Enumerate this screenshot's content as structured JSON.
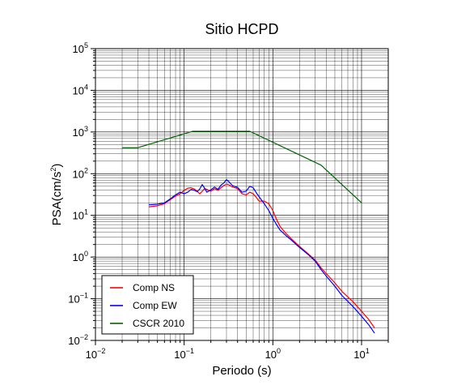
{
  "chart_data": {
    "type": "line",
    "title": "Sitio HCPD",
    "xlabel": "Periodo (s)",
    "ylabel": "PSA(cm/s²)",
    "ylabel_base": "PSA(cm/s",
    "ylabel_sup": "2",
    "ylabel_close": ")",
    "x_scale": "log",
    "y_scale": "log",
    "xlim": [
      0.01,
      20
    ],
    "ylim": [
      0.01,
      100000
    ],
    "grid": true,
    "legend_position": "bottom-left",
    "x_ticks": [
      {
        "base": "10",
        "exp": "−2",
        "value": 0.01
      },
      {
        "base": "10",
        "exp": "−1",
        "value": 0.1
      },
      {
        "base": "10",
        "exp": "0",
        "value": 1
      },
      {
        "base": "10",
        "exp": "1",
        "value": 10
      }
    ],
    "y_ticks": [
      {
        "base": "10",
        "exp": "−2",
        "value": 0.01
      },
      {
        "base": "10",
        "exp": "−1",
        "value": 0.1
      },
      {
        "base": "10",
        "exp": "0",
        "value": 1
      },
      {
        "base": "10",
        "exp": "1",
        "value": 10
      },
      {
        "base": "10",
        "exp": "2",
        "value": 100
      },
      {
        "base": "10",
        "exp": "3",
        "value": 1000
      },
      {
        "base": "10",
        "exp": "4",
        "value": 10000
      },
      {
        "base": "10",
        "exp": "5",
        "value": 100000
      }
    ],
    "series": [
      {
        "name": "Comp NS",
        "color": "#ff0000",
        "points": [
          [
            0.04,
            16
          ],
          [
            0.05,
            17
          ],
          [
            0.06,
            19
          ],
          [
            0.07,
            24
          ],
          [
            0.08,
            29
          ],
          [
            0.09,
            33
          ],
          [
            0.1,
            40
          ],
          [
            0.11,
            45
          ],
          [
            0.12,
            46
          ],
          [
            0.13,
            43
          ],
          [
            0.14,
            38
          ],
          [
            0.15,
            33
          ],
          [
            0.16,
            38
          ],
          [
            0.17,
            44
          ],
          [
            0.18,
            42
          ],
          [
            0.2,
            38
          ],
          [
            0.22,
            44
          ],
          [
            0.24,
            40
          ],
          [
            0.26,
            46
          ],
          [
            0.28,
            52
          ],
          [
            0.3,
            56
          ],
          [
            0.32,
            54
          ],
          [
            0.35,
            48
          ],
          [
            0.4,
            44
          ],
          [
            0.45,
            33
          ],
          [
            0.5,
            31
          ],
          [
            0.55,
            36
          ],
          [
            0.6,
            33
          ],
          [
            0.65,
            27
          ],
          [
            0.7,
            22
          ],
          [
            0.8,
            22
          ],
          [
            0.9,
            19
          ],
          [
            1.0,
            13
          ],
          [
            1.1,
            8
          ],
          [
            1.2,
            5.5
          ],
          [
            1.4,
            3.7
          ],
          [
            1.6,
            2.8
          ],
          [
            2.0,
            1.8
          ],
          [
            2.5,
            1.2
          ],
          [
            3.0,
            0.85
          ],
          [
            3.5,
            0.55
          ],
          [
            4.0,
            0.4
          ],
          [
            5.0,
            0.24
          ],
          [
            6.0,
            0.15
          ],
          [
            8.0,
            0.085
          ],
          [
            10.0,
            0.05
          ],
          [
            12.0,
            0.032
          ],
          [
            14.0,
            0.02
          ]
        ]
      },
      {
        "name": "Comp EW",
        "color": "#0000ff",
        "points": [
          [
            0.04,
            18
          ],
          [
            0.05,
            18.5
          ],
          [
            0.06,
            20
          ],
          [
            0.07,
            25
          ],
          [
            0.08,
            31
          ],
          [
            0.09,
            36
          ],
          [
            0.1,
            33
          ],
          [
            0.11,
            36
          ],
          [
            0.12,
            42
          ],
          [
            0.13,
            40
          ],
          [
            0.14,
            37
          ],
          [
            0.15,
            43
          ],
          [
            0.16,
            55
          ],
          [
            0.17,
            45
          ],
          [
            0.18,
            36
          ],
          [
            0.2,
            41
          ],
          [
            0.22,
            48
          ],
          [
            0.24,
            42
          ],
          [
            0.26,
            53
          ],
          [
            0.28,
            60
          ],
          [
            0.3,
            72
          ],
          [
            0.32,
            64
          ],
          [
            0.35,
            52
          ],
          [
            0.4,
            47
          ],
          [
            0.45,
            36
          ],
          [
            0.5,
            38
          ],
          [
            0.55,
            50
          ],
          [
            0.6,
            46
          ],
          [
            0.65,
            35
          ],
          [
            0.7,
            28
          ],
          [
            0.8,
            19
          ],
          [
            0.9,
            13
          ],
          [
            1.0,
            8.5
          ],
          [
            1.1,
            6
          ],
          [
            1.2,
            4.5
          ],
          [
            1.4,
            3.3
          ],
          [
            1.6,
            2.6
          ],
          [
            2.0,
            1.7
          ],
          [
            2.5,
            1.15
          ],
          [
            3.0,
            0.8
          ],
          [
            3.5,
            0.5
          ],
          [
            4.0,
            0.35
          ],
          [
            5.0,
            0.2
          ],
          [
            6.0,
            0.12
          ],
          [
            8.0,
            0.065
          ],
          [
            10.0,
            0.038
          ],
          [
            12.0,
            0.024
          ],
          [
            14.0,
            0.015
          ]
        ]
      },
      {
        "name": "CSCR 2010",
        "color": "#006400",
        "points": [
          [
            0.02,
            420
          ],
          [
            0.03,
            420
          ],
          [
            0.125,
            1040
          ],
          [
            0.55,
            1040
          ],
          [
            3.5,
            160
          ],
          [
            10.0,
            20
          ]
        ]
      }
    ]
  }
}
